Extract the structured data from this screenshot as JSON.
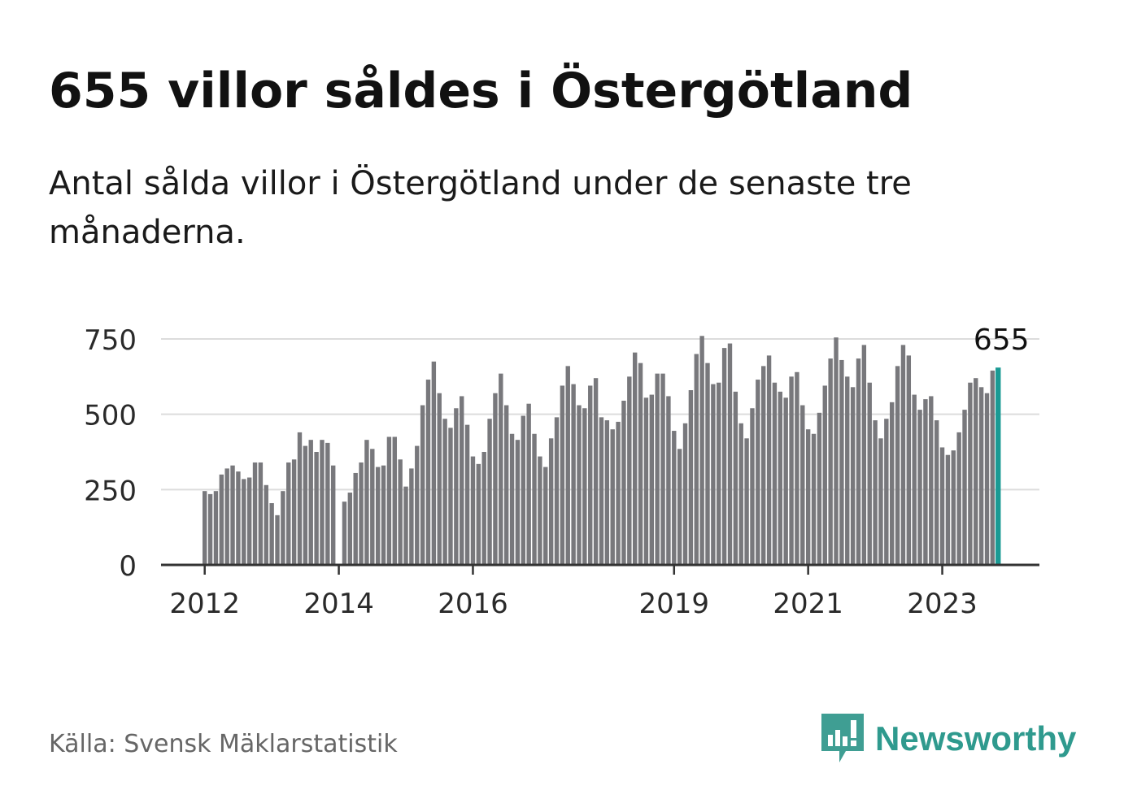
{
  "title": "655 villor såldes i Östergötland",
  "subtitle": "Antal sålda villor i Östergötland under de senaste tre månaderna.",
  "source": "Källa: Svensk Mäklarstatistik",
  "brand": {
    "name": "Newsworthy",
    "icon": "newsworthy-logo-icon",
    "color": "#2f9a8e"
  },
  "chart_data": {
    "type": "bar",
    "ylim": [
      0,
      750
    ],
    "y_ticks": [
      0,
      250,
      500,
      750
    ],
    "y_tick_labels": [
      "0",
      "250",
      "500",
      "750"
    ],
    "x_ticks": [
      2012,
      2014,
      2016,
      2019,
      2021,
      2023
    ],
    "x_tick_labels": [
      "2012",
      "2014",
      "2016",
      "2019",
      "2021",
      "2023"
    ],
    "grid": true,
    "start": "2012-01",
    "frequency": "monthly",
    "bar_color": "#78787c",
    "highlight_color": "#1a9a94",
    "highlight_label": "655",
    "values": [
      245,
      235,
      245,
      300,
      320,
      330,
      310,
      285,
      290,
      340,
      340,
      265,
      205,
      165,
      245,
      340,
      350,
      440,
      395,
      415,
      375,
      415,
      405,
      330,
      null,
      210,
      240,
      305,
      340,
      415,
      385,
      325,
      330,
      425,
      425,
      350,
      260,
      320,
      395,
      530,
      615,
      675,
      570,
      485,
      455,
      520,
      560,
      465,
      360,
      335,
      375,
      485,
      570,
      635,
      530,
      435,
      415,
      495,
      535,
      435,
      360,
      325,
      420,
      490,
      595,
      660,
      600,
      530,
      520,
      595,
      620,
      490,
      480,
      450,
      475,
      545,
      625,
      705,
      670,
      555,
      565,
      635,
      635,
      560,
      445,
      385,
      470,
      580,
      700,
      760,
      670,
      600,
      605,
      720,
      735,
      575,
      470,
      420,
      520,
      615,
      660,
      695,
      605,
      575,
      555,
      625,
      640,
      530,
      450,
      435,
      505,
      595,
      685,
      755,
      680,
      625,
      590,
      685,
      730,
      605,
      480,
      420,
      485,
      540,
      660,
      730,
      695,
      565,
      515,
      550,
      560,
      480,
      390,
      365,
      380,
      440,
      515,
      605,
      620,
      590,
      570,
      645,
      655
    ]
  }
}
